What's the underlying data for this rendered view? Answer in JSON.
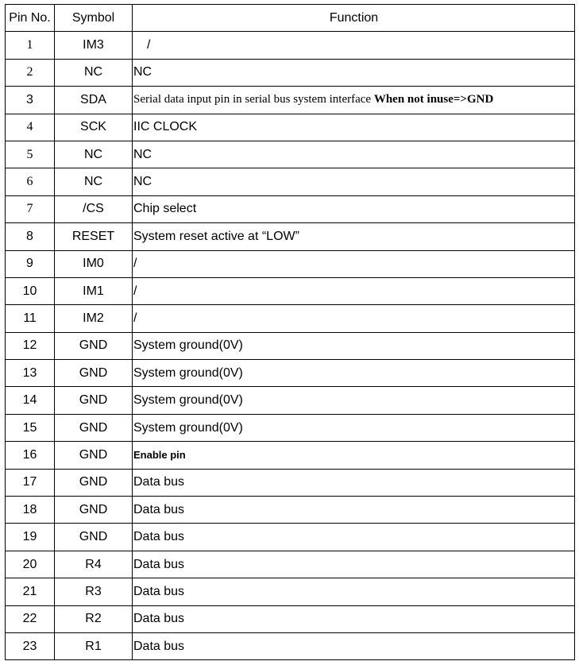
{
  "header": {
    "pin": "Pin No.",
    "symbol": "Symbol",
    "function": "Function"
  },
  "rows": [
    {
      "pin": "1",
      "symbol": "IM3",
      "function": "/",
      "pin_serif": true,
      "indent": true
    },
    {
      "pin": "2",
      "symbol": "NC",
      "function": "NC",
      "pin_serif": true
    },
    {
      "pin": "3",
      "symbol": "SDA",
      "function": "Serial data input pin in serial bus system interface ",
      "function_bold": "When not inuse=>GND",
      "function_serif": true
    },
    {
      "pin": "4",
      "symbol": "SCK",
      "function": "IIC CLOCK",
      "pin_serif": true
    },
    {
      "pin": "5",
      "symbol": "NC",
      "function": "NC",
      "pin_serif": true
    },
    {
      "pin": "6",
      "symbol": "NC",
      "function": "NC",
      "pin_serif": true
    },
    {
      "pin": "7",
      "symbol": "/CS",
      "function": "Chip select",
      "pin_serif": true
    },
    {
      "pin": "8",
      "symbol": "RESET",
      "function": "System reset active at “LOW”"
    },
    {
      "pin": "9",
      "symbol": "IM0",
      "function": "/"
    },
    {
      "pin": "10",
      "symbol": "IM1",
      "function": "/"
    },
    {
      "pin": "11",
      "symbol": "IM2",
      "function": "/"
    },
    {
      "pin": "12",
      "symbol": "GND",
      "function": "System ground(0V)"
    },
    {
      "pin": "13",
      "symbol": "GND",
      "function": "System ground(0V)"
    },
    {
      "pin": "14",
      "symbol": "GND",
      "function": "System ground(0V)"
    },
    {
      "pin": "15",
      "symbol": "GND",
      "function": "System ground(0V)"
    },
    {
      "pin": "16",
      "symbol": "GND",
      "function": "Enable pin",
      "function_small_bold": true
    },
    {
      "pin": "17",
      "symbol": "GND",
      "function": "Data bus"
    },
    {
      "pin": "18",
      "symbol": "GND",
      "function": "Data bus"
    },
    {
      "pin": "19",
      "symbol": "GND",
      "function": "Data bus"
    },
    {
      "pin": "20",
      "symbol": "R4",
      "function": "Data bus"
    },
    {
      "pin": "21",
      "symbol": "R3",
      "function": "Data bus"
    },
    {
      "pin": "22",
      "symbol": "R2",
      "function": "Data bus"
    },
    {
      "pin": "23",
      "symbol": "R1",
      "function": "Data bus"
    }
  ]
}
